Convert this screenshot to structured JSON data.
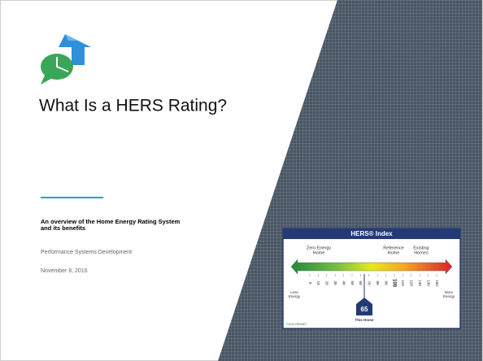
{
  "slide": {
    "title": "What Is a HERS Rating?",
    "subtitle_lines": [
      "An overview of the Home Energy Rating System",
      "and its benefits"
    ],
    "organization": "Performance Systems Development",
    "date": "November 8, 2016"
  },
  "hers_index": {
    "title": "HERS® Index",
    "zero_energy": [
      "Zero Energy",
      "Home"
    ],
    "reference": [
      "Reference",
      "Home"
    ],
    "existing": [
      "Existing",
      "Homes"
    ],
    "less_energy": [
      "Less",
      "Energy"
    ],
    "more_energy": [
      "More",
      "Energy"
    ],
    "scale": [
      "0",
      "10",
      "20",
      "30",
      "40",
      "50",
      "60",
      "70",
      "80",
      "90",
      "100",
      "110",
      "120",
      "130",
      "140",
      "150"
    ],
    "this_home_score": "65",
    "this_home": "This Home",
    "copyright": "©2013 RESNET"
  }
}
